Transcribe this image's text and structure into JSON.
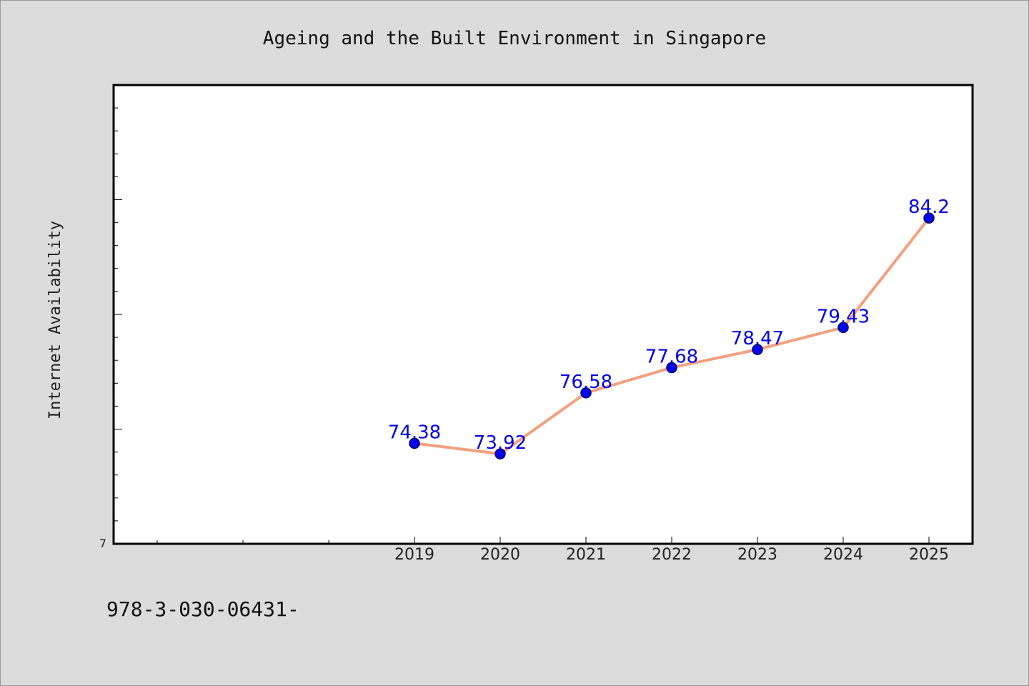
{
  "footer_text": "978-3-030-06431-",
  "chart_data": {
    "type": "line",
    "title": "Ageing and the Built Environment in Singapore",
    "ylabel": "Internet Availability",
    "xlabel": "",
    "y_tick_label_bottom": "7",
    "categories": [
      "2019",
      "2020",
      "2021",
      "2022",
      "2023",
      "2024",
      "2025"
    ],
    "series": [
      {
        "values": [
          74.38,
          73.92,
          76.58,
          77.68,
          78.47,
          79.43,
          84.2
        ],
        "labels": [
          "74.38",
          "73.92",
          "76.58",
          "77.68",
          "78.47",
          "79.43",
          "84.2"
        ]
      }
    ],
    "ylim": [
      70,
      90
    ],
    "grid": false,
    "legend": "none",
    "colors": {
      "line": "#f4a07f",
      "marker": "#0000ee",
      "marker_edge": "#000066",
      "data_label": "#0000ee",
      "background": "#dcdcdc",
      "plot_background": "#ffffff"
    }
  }
}
